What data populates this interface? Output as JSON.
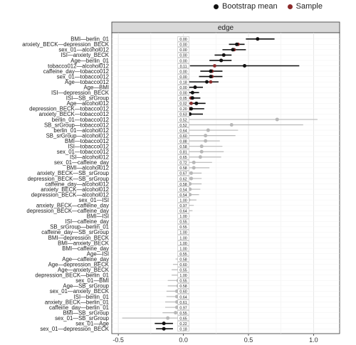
{
  "legend": {
    "items": [
      {
        "label": "Bootstrap mean",
        "color": "#111111"
      },
      {
        "label": "Sample",
        "color": "#8b2a2a"
      }
    ]
  },
  "chart_data": {
    "type": "forest",
    "panel_title": "edge",
    "xlim": [
      -0.55,
      1.2
    ],
    "xticks": [
      -0.5,
      0.0,
      0.5,
      1.0
    ],
    "xtick_labels": [
      "-0.5",
      "0.0",
      "0.5",
      "1.0"
    ],
    "grid": true,
    "rows": [
      {
        "label": "BMI—berlin_01",
        "p": "0.00",
        "mean": 0.57,
        "sample": 0.57,
        "lo": 0.48,
        "hi": 0.7,
        "sig": true
      },
      {
        "label": "anxiety_BECK—depression_BECK",
        "p": "0.00",
        "mean": 0.41,
        "sample": 0.42,
        "lo": 0.35,
        "hi": 0.47,
        "sig": true
      },
      {
        "label": "sex_01—alcohol012",
        "p": "0.00",
        "mean": 0.38,
        "sample": 0.39,
        "lo": 0.3,
        "hi": 0.48,
        "sig": true
      },
      {
        "label": "ISI—anxiety_BECK",
        "p": "0.00",
        "mean": 0.31,
        "sample": 0.31,
        "lo": 0.24,
        "hi": 0.37,
        "sig": true
      },
      {
        "label": "Age—berlin_01",
        "p": "0.00",
        "mean": 0.29,
        "sample": 0.29,
        "lo": 0.2,
        "hi": 0.37,
        "sig": true
      },
      {
        "label": "tobacco012—alcohol012",
        "p": "0.11",
        "mean": 0.47,
        "sample": 0.24,
        "lo": 0.05,
        "hi": 0.89,
        "sig": true
      },
      {
        "label": "caffeine_day—tobacco012",
        "p": "0.00",
        "mean": 0.21,
        "sample": 0.22,
        "lo": 0.13,
        "hi": 0.3,
        "sig": true
      },
      {
        "label": "sex_01—tobacco012",
        "p": "0.00",
        "mean": 0.21,
        "sample": 0.22,
        "lo": 0.12,
        "hi": 0.3,
        "sig": true
      },
      {
        "label": "Age—tobacco012",
        "p": "0.18",
        "mean": 0.18,
        "sample": 0.21,
        "lo": 0.03,
        "hi": 0.27,
        "sig": true
      },
      {
        "label": "Age—BMI",
        "p": "0.00",
        "mean": 0.09,
        "sample": 0.09,
        "lo": 0.04,
        "hi": 0.15,
        "sig": true
      },
      {
        "label": "ISI—depression_BECK",
        "p": "0.00",
        "mean": 0.07,
        "sample": 0.07,
        "lo": 0.03,
        "hi": 0.12,
        "sig": true
      },
      {
        "label": "ISI—SB_srGroup",
        "p": "0.05",
        "mean": 0.07,
        "sample": 0.06,
        "lo": 0.0,
        "hi": 0.13,
        "sig": true
      },
      {
        "label": "Age—alcohol012",
        "p": "0.02",
        "mean": 0.1,
        "sample": 0.06,
        "lo": 0.0,
        "hi": 0.17,
        "sig": true
      },
      {
        "label": "depression_BECK—tobacco012",
        "p": "0.20",
        "mean": 0.06,
        "sample": 0.05,
        "lo": 0.0,
        "hi": 0.16,
        "sig": true
      },
      {
        "label": "anxiety_BECK—tobacco012",
        "p": "0.63",
        "mean": 0.05,
        "sample": 0.03,
        "lo": -0.03,
        "hi": 0.15,
        "sig": true
      },
      {
        "label": "berlin_01—tobacco012",
        "p": "0.52",
        "mean": 0.72,
        "sample": 0.0,
        "lo": 0.0,
        "hi": 1.03,
        "sig": false
      },
      {
        "label": "SB_srGroup—tobacco012",
        "p": "0.52",
        "mean": 0.37,
        "sample": 0.0,
        "lo": 0.0,
        "hi": 0.92,
        "sig": false
      },
      {
        "label": "berlin_01—alcohol012",
        "p": "0.64",
        "mean": 0.19,
        "sample": 0.0,
        "lo": -0.03,
        "hi": 0.42,
        "sig": false
      },
      {
        "label": "SB_srGroup—alcohol012",
        "p": "0.60",
        "mean": 0.17,
        "sample": 0.0,
        "lo": -0.02,
        "hi": 0.4,
        "sig": false
      },
      {
        "label": "BMI—tobacco012",
        "p": "0.88",
        "mean": 0.17,
        "sample": 0.0,
        "lo": 0.0,
        "hi": 0.28,
        "sig": false
      },
      {
        "label": "ISI—tobacco012",
        "p": "0.58",
        "mean": 0.14,
        "sample": 0.0,
        "lo": 0.0,
        "hi": 0.3,
        "sig": false
      },
      {
        "label": "sex_01—tobacco012",
        "p": "0.81",
        "mean": 0.14,
        "sample": 0.0,
        "lo": 0.0,
        "hi": 0.31,
        "sig": false
      },
      {
        "label": "ISI—alcohol012",
        "p": "0.65",
        "mean": 0.13,
        "sample": 0.0,
        "lo": -0.02,
        "hi": 0.29,
        "sig": false
      },
      {
        "label": "sex_01—caffeine_day",
        "p": "0.72",
        "mean": 0.08,
        "sample": 0.0,
        "lo": -0.01,
        "hi": 0.22,
        "sig": false
      },
      {
        "label": "BMI—alcohol012",
        "p": "0.58",
        "mean": 0.08,
        "sample": 0.0,
        "lo": 0.0,
        "hi": 0.2,
        "sig": false
      },
      {
        "label": "anxiety_BECK—SB_srGroup",
        "p": "0.67",
        "mean": 0.06,
        "sample": 0.0,
        "lo": -0.01,
        "hi": 0.14,
        "sig": false
      },
      {
        "label": "depression_BECK—SB_srGroup",
        "p": "0.62",
        "mean": 0.06,
        "sample": 0.0,
        "lo": -0.01,
        "hi": 0.14,
        "sig": false
      },
      {
        "label": "caffeine_day—alcohol012",
        "p": "0.58",
        "mean": 0.05,
        "sample": 0.0,
        "lo": -0.01,
        "hi": 0.14,
        "sig": false
      },
      {
        "label": "anxiety_BECK—alcohol012",
        "p": "0.54",
        "mean": 0.05,
        "sample": 0.0,
        "lo": -0.01,
        "hi": 0.13,
        "sig": false
      },
      {
        "label": "depression_BECK—alcohol012",
        "p": "0.54",
        "mean": 0.05,
        "sample": 0.0,
        "lo": -0.01,
        "hi": 0.12,
        "sig": false
      },
      {
        "label": "sex_01—ISI",
        "p": "1.00",
        "mean": 0.04,
        "sample": 0.0,
        "lo": -0.01,
        "hi": 0.1,
        "sig": false
      },
      {
        "label": "anxiety_BECK—caffeine_day",
        "p": "0.97",
        "mean": 0.03,
        "sample": 0.0,
        "lo": -0.01,
        "hi": 0.08,
        "sig": false
      },
      {
        "label": "depression_BECK—caffeine_day",
        "p": "0.64",
        "mean": 0.03,
        "sample": 0.0,
        "lo": -0.01,
        "hi": 0.07,
        "sig": false
      },
      {
        "label": "BMI—ISI",
        "p": "1.00",
        "mean": 0.02,
        "sample": 0.0,
        "lo": -0.01,
        "hi": 0.05,
        "sig": false
      },
      {
        "label": "ISI—caffeine_day",
        "p": "0.55",
        "mean": 0.01,
        "sample": 0.0,
        "lo": -0.01,
        "hi": 0.04,
        "sig": false
      },
      {
        "label": "SB_srGroup—berlin_01",
        "p": "0.55",
        "mean": 0.01,
        "sample": 0.0,
        "lo": -0.01,
        "hi": 0.04,
        "sig": false
      },
      {
        "label": "caffeine_day—SB_srGroup",
        "p": "1.00",
        "mean": 0.0,
        "sample": 0.0,
        "lo": -0.01,
        "hi": 0.02,
        "sig": false
      },
      {
        "label": "BMI—depression_BECK",
        "p": "1.00",
        "mean": 0.0,
        "sample": 0.0,
        "lo": -0.01,
        "hi": 0.01,
        "sig": false
      },
      {
        "label": "BMI—anxiety_BECK",
        "p": "1.00",
        "mean": 0.0,
        "sample": 0.0,
        "lo": -0.01,
        "hi": 0.01,
        "sig": false
      },
      {
        "label": "BMI—caffeine_day",
        "p": "1.00",
        "mean": 0.0,
        "sample": 0.0,
        "lo": -0.01,
        "hi": 0.01,
        "sig": false
      },
      {
        "label": "Age—ISI",
        "p": "0.55",
        "mean": -0.01,
        "sample": 0.0,
        "lo": -0.04,
        "hi": 0.0,
        "sig": false
      },
      {
        "label": "Age—caffeine_day",
        "p": "0.58",
        "mean": -0.02,
        "sample": 0.0,
        "lo": -0.06,
        "hi": 0.0,
        "sig": false
      },
      {
        "label": "Age—depression_BECK",
        "p": "0.60",
        "mean": -0.03,
        "sample": 0.0,
        "lo": -0.08,
        "hi": 0.0,
        "sig": false
      },
      {
        "label": "Age—anxiety_BECK",
        "p": "0.55",
        "mean": -0.03,
        "sample": 0.0,
        "lo": -0.09,
        "hi": 0.0,
        "sig": false
      },
      {
        "label": "depression_BECK—berlin_01",
        "p": "1.00",
        "mean": -0.03,
        "sample": 0.0,
        "lo": -0.09,
        "hi": 0.0,
        "sig": false
      },
      {
        "label": "sex_01—BMI",
        "p": "0.55",
        "mean": -0.04,
        "sample": 0.0,
        "lo": -0.12,
        "hi": 0.0,
        "sig": false
      },
      {
        "label": "Age—SB_srGroup",
        "p": "0.58",
        "mean": -0.04,
        "sample": 0.0,
        "lo": -0.12,
        "hi": 0.0,
        "sig": false
      },
      {
        "label": "sex_01—anxiety_BECK",
        "p": "0.60",
        "mean": -0.05,
        "sample": 0.0,
        "lo": -0.13,
        "hi": 0.0,
        "sig": false
      },
      {
        "label": "ISI—berlin_01",
        "p": "0.64",
        "mean": -0.05,
        "sample": 0.0,
        "lo": -0.13,
        "hi": 0.0,
        "sig": false
      },
      {
        "label": "anxiety_BECK—berlin_01",
        "p": "0.61",
        "mean": -0.05,
        "sample": 0.0,
        "lo": -0.14,
        "hi": 0.0,
        "sig": false
      },
      {
        "label": "caffeine_day—berlin_01",
        "p": "0.97",
        "mean": -0.05,
        "sample": 0.0,
        "lo": -0.14,
        "hi": 0.0,
        "sig": false
      },
      {
        "label": "BMI—SB_srGroup",
        "p": "0.55",
        "mean": -0.06,
        "sample": 0.0,
        "lo": -0.16,
        "hi": 0.0,
        "sig": false
      },
      {
        "label": "sex_01—SB_srGroup",
        "p": "0.65",
        "mean": -0.12,
        "sample": 0.0,
        "lo": -0.47,
        "hi": 0.0,
        "sig": false
      },
      {
        "label": "sex_01—Age",
        "p": "0.22",
        "mean": -0.15,
        "sample": -0.15,
        "lo": -0.22,
        "hi": -0.08,
        "sig": true
      },
      {
        "label": "sex_01—depression_BECK",
        "p": "0.18",
        "mean": -0.15,
        "sample": -0.15,
        "lo": -0.21,
        "hi": -0.08,
        "sig": true
      }
    ]
  }
}
